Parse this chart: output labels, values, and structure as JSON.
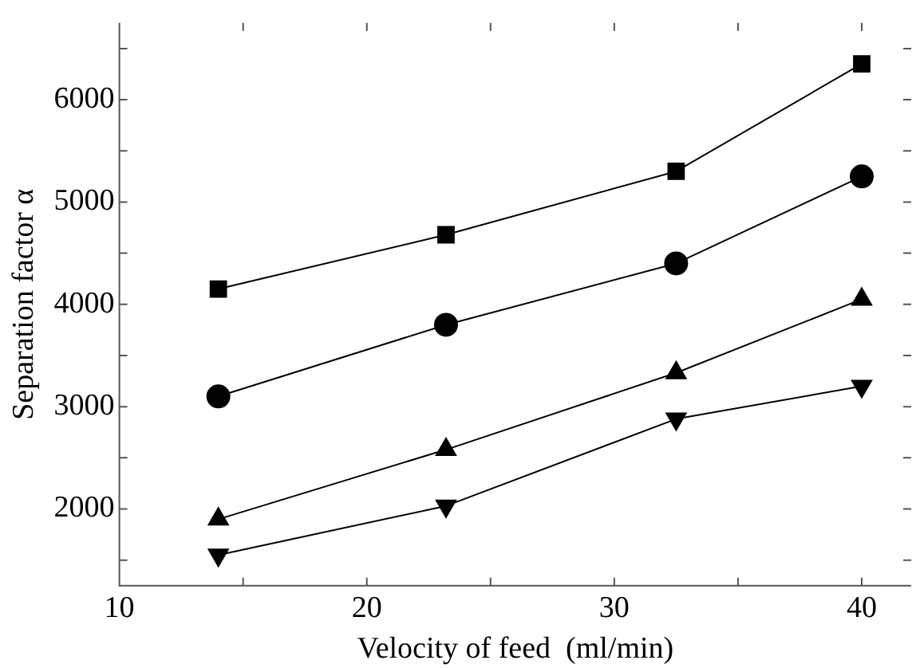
{
  "chart_data": {
    "type": "line",
    "xlabel": "Velocity of feed  (ml/min)",
    "ylabel": "Separation factor α",
    "x": [
      14,
      23.2,
      32.5,
      40
    ],
    "series": [
      {
        "color": "#000000",
        "marker": "square",
        "values": [
          4150,
          4680,
          5300,
          6350
        ]
      },
      {
        "color": "#000000",
        "marker": "circle",
        "values": [
          3100,
          3800,
          4400,
          5250
        ]
      },
      {
        "color": "#000000",
        "marker": "triangle",
        "values": [
          1900,
          2580,
          3330,
          4050
        ]
      },
      {
        "color": "#000000",
        "marker": "triangle-down",
        "values": [
          1550,
          2030,
          2880,
          3200
        ]
      }
    ],
    "xlim": [
      10,
      42
    ],
    "xticks": [
      10,
      {
        "value": 15,
        "label": null
      },
      20,
      {
        "value": 25,
        "label": null
      },
      30,
      {
        "value": 35,
        "label": null
      },
      40
    ],
    "ylim": [
      1250,
      6750
    ],
    "yticks": [
      {
        "value": 1500,
        "label": null
      },
      2000,
      {
        "value": 2500,
        "label": null
      },
      3000,
      {
        "value": 3500,
        "label": null
      },
      4000,
      {
        "value": 4500,
        "label": null
      },
      5000,
      {
        "value": 5500,
        "label": null
      },
      6000,
      {
        "value": 6500,
        "label": null
      }
    ],
    "grid": false,
    "legend": false,
    "line_style": "solid"
  }
}
